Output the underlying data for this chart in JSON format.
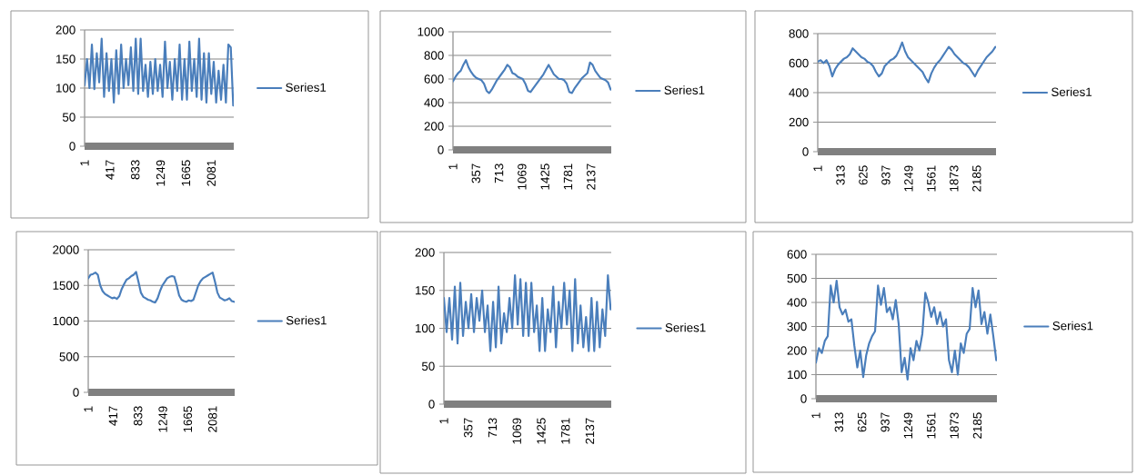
{
  "chart_data": [
    {
      "type": "line",
      "x": [
        1,
        41,
        81,
        121,
        161,
        201,
        241,
        281,
        321,
        361,
        401,
        441,
        481,
        521,
        561,
        601,
        641,
        681,
        721,
        761,
        801,
        841,
        881,
        921,
        961,
        1001,
        1041,
        1081,
        1121,
        1161,
        1201,
        1241,
        1281,
        1321,
        1361,
        1401,
        1441,
        1481,
        1521,
        1561,
        1601,
        1641,
        1681,
        1721,
        1761,
        1801,
        1841,
        1881,
        1921,
        1961,
        2001,
        2041,
        2081,
        2121,
        2161,
        2201,
        2241,
        2281,
        2321,
        2361,
        2401,
        2441
      ],
      "xlim": [
        1,
        2450
      ],
      "xticks": [
        1,
        417,
        833,
        1249,
        1665,
        2081
      ],
      "ylim": [
        0,
        200
      ],
      "yticks": [
        0,
        50,
        100,
        150,
        200
      ],
      "grid": "y",
      "legend": "right",
      "series": [
        {
          "name": "Series1",
          "color": "#4a7ebb",
          "values": [
            105,
            150,
            100,
            175,
            98,
            160,
            110,
            185,
            85,
            160,
            95,
            150,
            75,
            165,
            90,
            175,
            100,
            150,
            105,
            170,
            95,
            185,
            90,
            185,
            95,
            140,
            85,
            145,
            90,
            150,
            95,
            140,
            85,
            180,
            100,
            145,
            80,
            150,
            95,
            175,
            80,
            150,
            80,
            180,
            95,
            150,
            85,
            185,
            80,
            160,
            75,
            160,
            90,
            145,
            75,
            130,
            80,
            140,
            75,
            175,
            170,
            70
          ]
        }
      ]
    },
    {
      "type": "line",
      "x": [
        1,
        41,
        81,
        121,
        161,
        201,
        241,
        281,
        321,
        361,
        401,
        441,
        481,
        521,
        561,
        601,
        641,
        681,
        721,
        761,
        801,
        841,
        881,
        921,
        961,
        1001,
        1041,
        1081,
        1121,
        1161,
        1201,
        1241,
        1281,
        1321,
        1361,
        1401,
        1441,
        1481,
        1521,
        1561,
        1601,
        1641,
        1681,
        1721,
        1761,
        1801,
        1841,
        1881,
        1921,
        1961,
        2001,
        2041,
        2081,
        2121,
        2161,
        2201,
        2241,
        2281,
        2321,
        2361,
        2401,
        2441
      ],
      "xlim": [
        1,
        2450
      ],
      "xticks": [
        1,
        357,
        713,
        1069,
        1425,
        1781,
        2137
      ],
      "ylim": [
        0,
        1000
      ],
      "yticks": [
        0,
        200,
        400,
        600,
        800,
        1000
      ],
      "grid": "y",
      "legend": "right",
      "series": [
        {
          "name": "Series1",
          "color": "#4a7ebb",
          "values": [
            580,
            620,
            650,
            670,
            720,
            760,
            700,
            660,
            630,
            610,
            600,
            590,
            560,
            500,
            480,
            510,
            550,
            590,
            620,
            650,
            680,
            720,
            700,
            650,
            640,
            620,
            610,
            600,
            560,
            500,
            490,
            520,
            550,
            580,
            610,
            640,
            680,
            720,
            680,
            640,
            620,
            600,
            600,
            590,
            560,
            490,
            480,
            520,
            550,
            580,
            610,
            630,
            650,
            740,
            720,
            670,
            640,
            610,
            600,
            590,
            570,
            510
          ]
        }
      ]
    },
    {
      "type": "line",
      "x": [
        1,
        41,
        81,
        121,
        161,
        201,
        241,
        281,
        321,
        361,
        401,
        441,
        481,
        521,
        561,
        601,
        641,
        681,
        721,
        761,
        801,
        841,
        881,
        921,
        961,
        1001,
        1041,
        1081,
        1121,
        1161,
        1201,
        1241,
        1281,
        1321,
        1361,
        1401,
        1441,
        1481,
        1521,
        1561,
        1601,
        1641,
        1681,
        1721,
        1761,
        1801,
        1841,
        1881,
        1921,
        1961,
        2001,
        2041,
        2081,
        2121,
        2161,
        2201,
        2241,
        2281,
        2321,
        2361,
        2401,
        2441
      ],
      "xlim": [
        1,
        2450
      ],
      "xticks": [
        1,
        313,
        625,
        937,
        1249,
        1561,
        1873,
        2185
      ],
      "ylim": [
        0,
        800
      ],
      "yticks": [
        0,
        200,
        400,
        600,
        800
      ],
      "grid": "y",
      "legend": "right",
      "series": [
        {
          "name": "Series1",
          "color": "#4a7ebb",
          "values": [
            610,
            620,
            600,
            620,
            580,
            510,
            560,
            590,
            610,
            630,
            640,
            660,
            700,
            680,
            660,
            640,
            630,
            610,
            600,
            580,
            540,
            510,
            530,
            580,
            600,
            620,
            630,
            650,
            690,
            740,
            680,
            640,
            620,
            600,
            580,
            560,
            540,
            500,
            470,
            530,
            570,
            600,
            620,
            650,
            680,
            710,
            690,
            660,
            640,
            620,
            600,
            590,
            570,
            540,
            510,
            550,
            580,
            610,
            640,
            660,
            680,
            710
          ]
        }
      ]
    },
    {
      "type": "line",
      "x": [
        1,
        41,
        81,
        121,
        161,
        201,
        241,
        281,
        321,
        361,
        401,
        441,
        481,
        521,
        561,
        601,
        641,
        681,
        721,
        761,
        801,
        841,
        881,
        921,
        961,
        1001,
        1041,
        1081,
        1121,
        1161,
        1201,
        1241,
        1281,
        1321,
        1361,
        1401,
        1441,
        1481,
        1521,
        1561,
        1601,
        1641,
        1681,
        1721,
        1761,
        1801,
        1841,
        1881,
        1921,
        1961,
        2001,
        2041,
        2081,
        2121,
        2161,
        2201,
        2241,
        2281,
        2321,
        2361,
        2401,
        2441
      ],
      "xlim": [
        1,
        2450
      ],
      "xticks": [
        1,
        417,
        833,
        1249,
        1665,
        2081
      ],
      "ylim": [
        0,
        2000
      ],
      "yticks": [
        0,
        500,
        1000,
        1500,
        2000
      ],
      "grid": "y",
      "legend": "right",
      "series": [
        {
          "name": "Series1",
          "color": "#4a7ebb",
          "values": [
            1600,
            1650,
            1660,
            1680,
            1650,
            1500,
            1420,
            1380,
            1360,
            1340,
            1320,
            1330,
            1310,
            1350,
            1450,
            1520,
            1580,
            1600,
            1630,
            1650,
            1690,
            1550,
            1400,
            1340,
            1320,
            1300,
            1290,
            1270,
            1260,
            1320,
            1420,
            1500,
            1550,
            1600,
            1620,
            1630,
            1620,
            1500,
            1360,
            1300,
            1280,
            1270,
            1290,
            1280,
            1300,
            1400,
            1500,
            1560,
            1600,
            1620,
            1640,
            1660,
            1680,
            1550,
            1400,
            1330,
            1310,
            1290,
            1300,
            1320,
            1280,
            1270
          ]
        }
      ]
    },
    {
      "type": "line",
      "x": [
        1,
        41,
        81,
        121,
        161,
        201,
        241,
        281,
        321,
        361,
        401,
        441,
        481,
        521,
        561,
        601,
        641,
        681,
        721,
        761,
        801,
        841,
        881,
        921,
        961,
        1001,
        1041,
        1081,
        1121,
        1161,
        1201,
        1241,
        1281,
        1321,
        1361,
        1401,
        1441,
        1481,
        1521,
        1561,
        1601,
        1641,
        1681,
        1721,
        1761,
        1801,
        1841,
        1881,
        1921,
        1961,
        2001,
        2041,
        2081,
        2121,
        2161,
        2201,
        2241,
        2281,
        2321,
        2361,
        2401,
        2441
      ],
      "xlim": [
        1,
        2450
      ],
      "xticks": [
        1,
        357,
        713,
        1069,
        1425,
        1781,
        2137
      ],
      "ylim": [
        0,
        200
      ],
      "yticks": [
        0,
        50,
        100,
        150,
        200
      ],
      "grid": "y",
      "legend": "right",
      "series": [
        {
          "name": "Series1",
          "color": "#4a7ebb",
          "values": [
            140,
            95,
            140,
            85,
            155,
            80,
            160,
            90,
            135,
            100,
            145,
            95,
            140,
            110,
            150,
            95,
            130,
            70,
            135,
            75,
            155,
            80,
            120,
            95,
            140,
            100,
            170,
            105,
            165,
            90,
            160,
            90,
            160,
            95,
            130,
            70,
            140,
            70,
            125,
            95,
            155,
            75,
            135,
            100,
            160,
            105,
            150,
            70,
            165,
            80,
            130,
            75,
            115,
            70,
            140,
            70,
            135,
            75,
            125,
            90,
            170,
            125
          ]
        }
      ]
    },
    {
      "type": "line",
      "x": [
        1,
        41,
        81,
        121,
        161,
        201,
        241,
        281,
        321,
        361,
        401,
        441,
        481,
        521,
        561,
        601,
        641,
        681,
        721,
        761,
        801,
        841,
        881,
        921,
        961,
        1001,
        1041,
        1081,
        1121,
        1161,
        1201,
        1241,
        1281,
        1321,
        1361,
        1401,
        1441,
        1481,
        1521,
        1561,
        1601,
        1641,
        1681,
        1721,
        1761,
        1801,
        1841,
        1881,
        1921,
        1961,
        2001,
        2041,
        2081,
        2121,
        2161,
        2201,
        2241,
        2281,
        2321,
        2361,
        2401,
        2441
      ],
      "xlim": [
        1,
        2450
      ],
      "xticks": [
        1,
        313,
        625,
        937,
        1249,
        1561,
        1873,
        2185
      ],
      "ylim": [
        0,
        600
      ],
      "yticks": [
        0,
        100,
        200,
        300,
        400,
        500,
        600
      ],
      "grid": "y",
      "legend": "right",
      "series": [
        {
          "name": "Series1",
          "color": "#4a7ebb",
          "values": [
            150,
            210,
            190,
            240,
            260,
            470,
            400,
            490,
            380,
            350,
            370,
            320,
            330,
            220,
            130,
            200,
            90,
            180,
            230,
            260,
            280,
            470,
            390,
            460,
            360,
            380,
            330,
            410,
            310,
            110,
            170,
            80,
            210,
            160,
            240,
            200,
            270,
            440,
            400,
            340,
            380,
            310,
            360,
            300,
            330,
            160,
            110,
            200,
            100,
            230,
            190,
            270,
            290,
            460,
            380,
            450,
            310,
            360,
            270,
            350,
            260,
            160
          ]
        }
      ]
    }
  ]
}
